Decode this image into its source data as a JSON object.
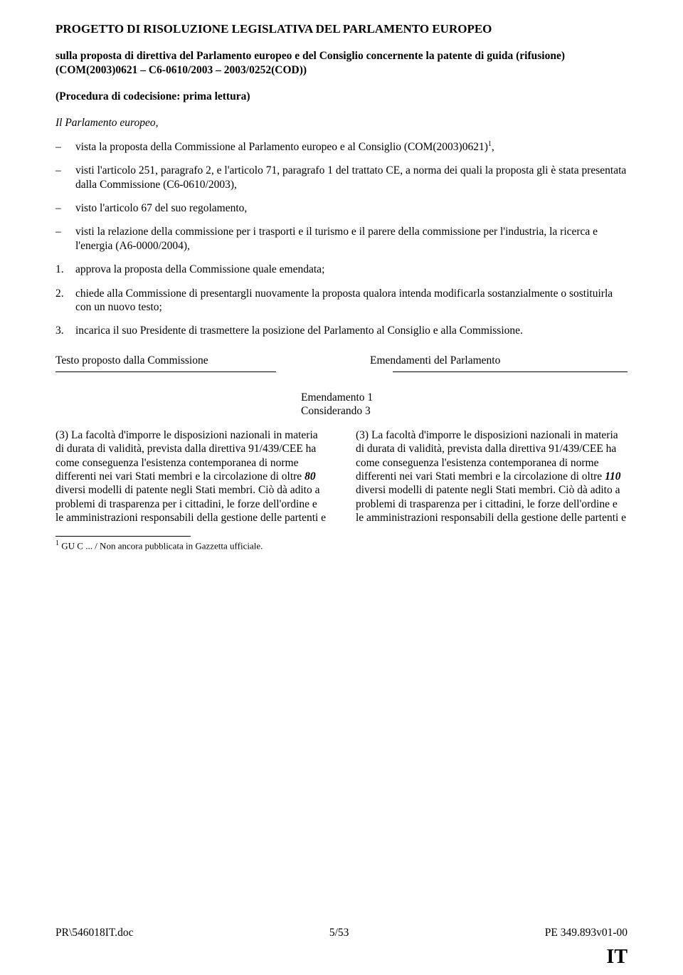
{
  "title": "PROGETTO DI RISOLUZIONE LEGISLATIVA DEL PARLAMENTO EUROPEO",
  "subtitle": "sulla proposta di direttiva del Parlamento europeo e del Consiglio concernente la patente di guida (rifusione)",
  "refs": "(COM(2003)0621 – C6-0610/2003 – 2003/0252(COD))",
  "procedure": "(Procedura di codecisione: prima lettura)",
  "parl": "Il Parlamento europeo",
  "dash_items": [
    {
      "text_a": "vista la proposta della Commissione al Parlamento europeo e al Consiglio (COM(2003)0621)",
      "sup": "1",
      "text_b": ","
    },
    {
      "text_a": "visti l'articolo 251, paragrafo 2, e l'articolo 71, paragrafo 1 del trattato CE, a norma dei quali la proposta gli è stata presentata dalla Commissione (C6-0610/2003),"
    },
    {
      "text_a": "visto l'articolo 67 del suo regolamento,"
    },
    {
      "text_a": "visti la relazione della commissione per i trasporti e il turismo e il parere della commissione per l'industria, la ricerca e l'energia (A6-0000/2004),"
    }
  ],
  "num_items": [
    {
      "n": "1.",
      "t": "approva la proposta della Commissione quale emendata;"
    },
    {
      "n": "2.",
      "t": "chiede alla Commissione di presentargli nuovamente la proposta qualora intenda modificarla sostanzialmente o sostituirla con un nuovo testo;"
    },
    {
      "n": "3.",
      "t": "incarica il suo Presidente di trasmettere la posizione del Parlamento al Consiglio e alla Commissione."
    }
  ],
  "col_head_left": "Testo proposto dalla Commissione",
  "col_head_right": "Emendamenti del Parlamento",
  "amend_num": "Emendamento 1",
  "amend_ref": "Considerando 3",
  "left_body_a": "(3) La facoltà d'imporre le disposizioni nazionali in materia di durata di validità, prevista dalla direttiva 91/439/CEE ha come conseguenza l'esistenza contemporanea di norme differenti nei vari Stati membri e la circolazione di oltre ",
  "left_body_bold": "80",
  "left_body_b": " diversi modelli di patente negli Stati membri. Ciò dà adito a problemi di trasparenza per i cittadini, le forze dell'ordine e le amministrazioni responsabili della gestione delle partenti e",
  "right_body_a": "(3) La facoltà d'imporre le disposizioni nazionali in materia di durata di validità, prevista dalla direttiva 91/439/CEE ha come conseguenza l'esistenza contemporanea di norme differenti nei vari Stati membri e la circolazione di oltre ",
  "right_body_bold": "110",
  "right_body_b": " diversi modelli di patente negli Stati membri. Ciò dà adito a problemi di trasparenza per i cittadini, le forze dell'ordine e le amministrazioni responsabili della gestione delle partenti e",
  "footnote_mark": "1",
  "footnote_text": " GU C ... / Non ancora pubblicata in Gazzetta ufficiale.",
  "footer_left": "PR\\546018IT.doc",
  "footer_center": "5/53",
  "footer_right": "PE 349.893v01-00",
  "lang": "IT"
}
